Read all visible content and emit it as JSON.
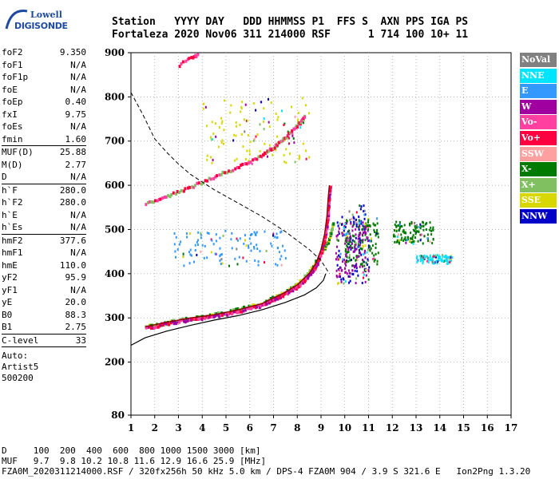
{
  "logo": {
    "line1": "Lowell",
    "line2": "DIGISONDE"
  },
  "header": {
    "row1": "Station   YYYY DAY   DDD HHMMSS P1  FFS S  AXN PPS IGA PS",
    "row2": "Fortaleza 2020 Nov06 311 214000 RSF      1 714 100 10+ 11"
  },
  "params": [
    {
      "name": "foF2",
      "value": "9.350"
    },
    {
      "name": "foF1",
      "value": "N/A"
    },
    {
      "name": "foF1p",
      "value": "N/A"
    },
    {
      "name": "foE",
      "value": "N/A"
    },
    {
      "name": "foEp",
      "value": "0.40"
    },
    {
      "name": "fxI",
      "value": "9.75"
    },
    {
      "name": "foEs",
      "value": "N/A"
    },
    {
      "name": "fmin",
      "value": "1.60"
    },
    {
      "name": "MUF(D)",
      "value": "25.88",
      "sep": true
    },
    {
      "name": "M(D)",
      "value": "2.77"
    },
    {
      "name": "D",
      "value": "N/A"
    },
    {
      "name": "h`F",
      "value": "280.0",
      "sep": true
    },
    {
      "name": "h`F2",
      "value": "280.0"
    },
    {
      "name": "h`E",
      "value": "N/A"
    },
    {
      "name": "h`Es",
      "value": "N/A"
    },
    {
      "name": "hmF2",
      "value": "377.6",
      "sep": true
    },
    {
      "name": "hmF1",
      "value": "N/A"
    },
    {
      "name": "hmE",
      "value": "110.0"
    },
    {
      "name": "yF2",
      "value": "95.9"
    },
    {
      "name": "yF1",
      "value": "N/A"
    },
    {
      "name": "yE",
      "value": "20.0"
    },
    {
      "name": "B0",
      "value": "88.3"
    },
    {
      "name": "B1",
      "value": "2.75"
    },
    {
      "name": "C-level",
      "value": "33",
      "sep": true
    }
  ],
  "auto": {
    "line1": "Auto:",
    "line2": "Artist5",
    "line3": "500200"
  },
  "bottom": {
    "d_row": "D     100  200  400  600  800 1000 1500 3000 [km]",
    "muf_row": "MUF   9.7  9.8 10.2 10.8 11.6 12.9 16.6 25.9 [MHz]",
    "footer": "FZA0M_2020311214000.RSF / 320fx256h 50 kHz 5.0 km / DPS-4 FZA0M 904 / 3.9 S 321.6 E   Ion2Png 1.3.20"
  },
  "legend": [
    {
      "label": "NoVal",
      "color": "#808080"
    },
    {
      "label": "NNE",
      "color": "#00e5ff"
    },
    {
      "label": "E",
      "color": "#3399ff"
    },
    {
      "label": "W",
      "color": "#a000a0"
    },
    {
      "label": "Vo-",
      "color": "#ff40a0"
    },
    {
      "label": "Vo+",
      "color": "#ff0040"
    },
    {
      "label": "SSW",
      "color": "#ffa0a0"
    },
    {
      "label": "X-",
      "color": "#007a00"
    },
    {
      "label": "X+",
      "color": "#80c060"
    },
    {
      "label": "SSE",
      "color": "#d8d800"
    },
    {
      "label": "NNW",
      "color": "#0000c8"
    }
  ],
  "chart_data": {
    "type": "scatter",
    "xlim": [
      1,
      17
    ],
    "ylim": [
      80,
      900
    ],
    "x_ticks": [
      1,
      2,
      3,
      4,
      5,
      6,
      7,
      8,
      9,
      10,
      11,
      12,
      13,
      14,
      15,
      16,
      17
    ],
    "y_ticks": [
      80,
      200,
      300,
      400,
      500,
      600,
      700,
      800,
      900
    ],
    "grid": true,
    "ordinary_trace": [
      [
        1.6,
        280
      ],
      [
        2.5,
        290
      ],
      [
        3.5,
        300
      ],
      [
        4.5,
        307
      ],
      [
        5.5,
        318
      ],
      [
        6.5,
        332
      ],
      [
        7.0,
        345
      ],
      [
        7.5,
        358
      ],
      [
        8.0,
        375
      ],
      [
        8.5,
        400
      ],
      [
        8.8,
        425
      ],
      [
        9.0,
        455
      ],
      [
        9.15,
        490
      ],
      [
        9.25,
        530
      ],
      [
        9.3,
        570
      ],
      [
        9.35,
        600
      ]
    ],
    "extraordinary_trace": [
      [
        1.6,
        283
      ],
      [
        2.5,
        292
      ],
      [
        3.5,
        302
      ],
      [
        4.5,
        310
      ],
      [
        5.5,
        322
      ],
      [
        6.5,
        336
      ],
      [
        7.5,
        362
      ],
      [
        8.0,
        380
      ],
      [
        8.5,
        408
      ],
      [
        9.0,
        450
      ],
      [
        9.3,
        480
      ],
      [
        9.5,
        520
      ]
    ],
    "second_hop_trace": [
      [
        1.6,
        560
      ],
      [
        2.5,
        578
      ],
      [
        3.5,
        600
      ],
      [
        4.5,
        622
      ],
      [
        5.5,
        645
      ],
      [
        6.5,
        672
      ],
      [
        7.0,
        690
      ],
      [
        7.5,
        712
      ],
      [
        8.0,
        740
      ],
      [
        8.3,
        760
      ]
    ],
    "third_hop_trace": [
      [
        3.0,
        875
      ],
      [
        3.5,
        892
      ],
      [
        3.8,
        900
      ]
    ],
    "profile_curve": [
      [
        1.0,
        238
      ],
      [
        1.6,
        255
      ],
      [
        2.5,
        270
      ],
      [
        3.5,
        283
      ],
      [
        4.5,
        295
      ],
      [
        5.5,
        305
      ],
      [
        6.5,
        318
      ],
      [
        7.5,
        335
      ],
      [
        8.3,
        352
      ],
      [
        8.8,
        368
      ],
      [
        9.1,
        385
      ],
      [
        9.2,
        400
      ]
    ],
    "muf_curve": [
      [
        1.0,
        810
      ],
      [
        1.5,
        760
      ],
      [
        2.0,
        705
      ],
      [
        2.5,
        675
      ],
      [
        3.0,
        648
      ],
      [
        3.5,
        625
      ],
      [
        4.5,
        590
      ],
      [
        5.5,
        560
      ],
      [
        6.5,
        530
      ],
      [
        7.5,
        495
      ],
      [
        8.5,
        455
      ],
      [
        9.0,
        430
      ],
      [
        9.35,
        400
      ]
    ],
    "clusters": [
      {
        "name": "E-echo-band",
        "color": "#3399ff",
        "x": [
          2.8,
          7.5
        ],
        "y": [
          420,
          500
        ]
      },
      {
        "name": "spread-core",
        "color": "#0000c8",
        "x": [
          9.6,
          11.0
        ],
        "y": [
          380,
          560
        ]
      },
      {
        "name": "spread-green",
        "color": "#007a00",
        "x": [
          10.0,
          11.4
        ],
        "y": [
          420,
          530
        ]
      },
      {
        "name": "spread-magenta",
        "color": "#a000a0",
        "x": [
          9.6,
          11.0
        ],
        "y": [
          380,
          520
        ]
      },
      {
        "name": "far-spread-cyan",
        "color": "#00e5ff",
        "x": [
          13.0,
          14.5
        ],
        "y": [
          425,
          445
        ]
      },
      {
        "name": "far-spread-green",
        "color": "#007a00",
        "x": [
          12.0,
          13.7
        ],
        "y": [
          470,
          520
        ]
      },
      {
        "name": "high-scatter",
        "color": "#d8d800",
        "x": [
          4.0,
          8.5
        ],
        "y": [
          650,
          800
        ]
      }
    ]
  }
}
